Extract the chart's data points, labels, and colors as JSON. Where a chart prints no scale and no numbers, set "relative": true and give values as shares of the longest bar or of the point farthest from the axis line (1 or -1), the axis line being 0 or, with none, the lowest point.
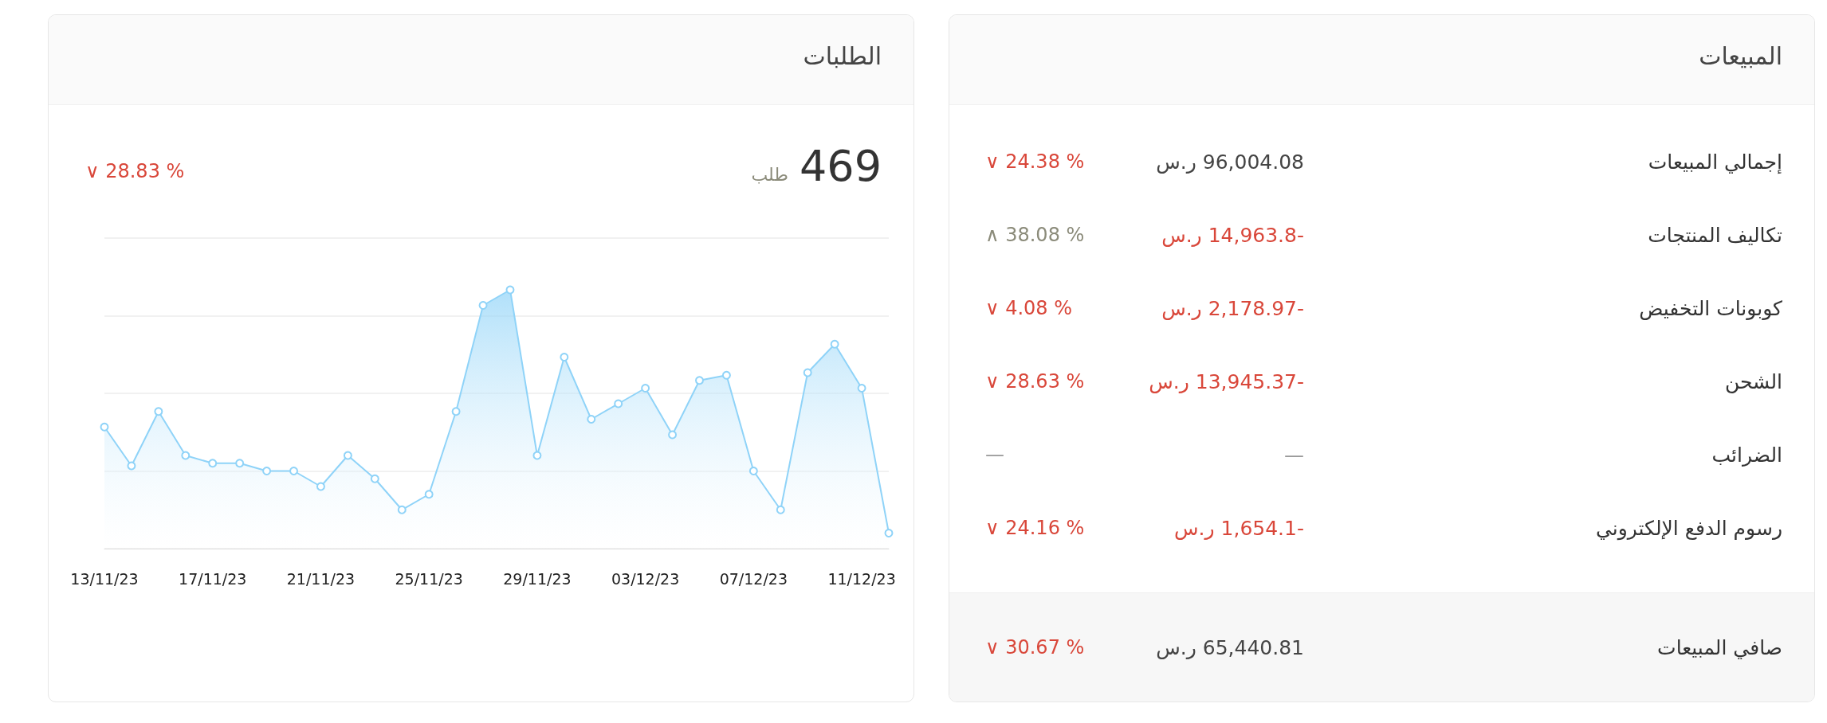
{
  "chart_data": [
    {
      "type": "area",
      "title": "الطلبات",
      "annotations": [
        "469",
        "طلب",
        "∨ 28.83 %"
      ],
      "categories": [
        "13/11/23",
        null,
        null,
        null,
        "17/11/23",
        null,
        null,
        null,
        "21/11/23",
        null,
        null,
        null,
        "25/11/23",
        null,
        null,
        null,
        "29/11/23",
        null,
        null,
        null,
        "03/12/23",
        null,
        null,
        null,
        "07/12/23",
        null,
        null,
        null,
        "11/12/23",
        null
      ],
      "series": [
        {
          "color": "#8fd3f8",
          "values": [
            0.47,
            0.32,
            0.53,
            0.36,
            0.33,
            0.33,
            0.3,
            0.3,
            0.24,
            0.36,
            0.27,
            0.15,
            0.21,
            0.53,
            0.94,
            1,
            0.36,
            0.74,
            0.5,
            0.56,
            0.62,
            0.44,
            0.65,
            0.67,
            0.3,
            0.15,
            0.68,
            0.79,
            0.62,
            0.06
          ]
        }
      ],
      "relative": true,
      "grid": "y",
      "marker": "circle"
    },
    {
      "type": "other",
      "title": "المبيعات",
      "annotations": [
        "إجمالي المبيعات",
        "96,004.08 ر.س",
        "∨ 24.38 %",
        "تكاليف المنتجات",
        "-14,963.8 ر.س",
        "∧ 38.08 %",
        "كوبونات التخفيض",
        "-2,178.97 ر.س",
        "∨ 4.08 %",
        "الشحن",
        "-13,945.37 ر.س",
        "∨ 28.63 %",
        "الضرائب",
        "—",
        "—",
        "رسوم الدفع الإلكتروني",
        "-1,654.1 ر.س",
        "∨ 24.16 %",
        "صافي المبيعات",
        "65,440.81 ر.س",
        "∨ 30.67 %"
      ],
      "colors": [
        "#333333",
        "#444444",
        "#d9473a",
        "#333333",
        "#d9473a",
        "#8b8b7a",
        "#333333",
        "#d9473a",
        "#d9473a",
        "#333333",
        "#d9473a",
        "#d9473a",
        "#333333",
        "#999999",
        "#999999",
        "#333333",
        "#d9473a",
        "#d9473a",
        "#333333",
        "#444444",
        "#d9473a"
      ]
    }
  ]
}
